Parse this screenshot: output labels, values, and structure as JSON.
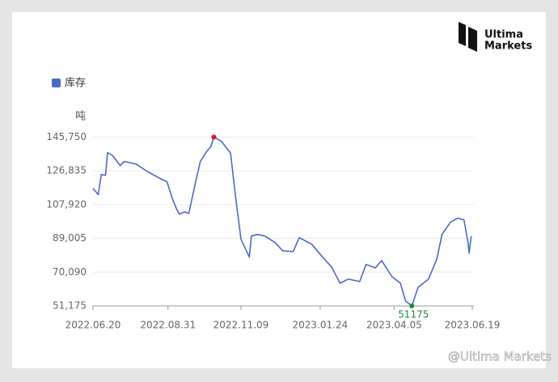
{
  "chart_data": {
    "type": "line",
    "legend_label": "库存",
    "y_unit": "吨",
    "brand": [
      "Ultima",
      "Markets"
    ],
    "watermark": "@Ultima Markets",
    "x": [
      "2022.06.20",
      "2022.06.25",
      "2022.06.28",
      "2022.07.02",
      "2022.07.04",
      "2022.07.09",
      "2022.07.16",
      "2022.07.20",
      "2022.07.31",
      "2022.08.12",
      "2022.08.22",
      "2022.08.30",
      "2022.09.04",
      "2022.09.08",
      "2022.09.11",
      "2022.09.16",
      "2022.09.20",
      "2022.09.26",
      "2022.10.01",
      "2022.10.07",
      "2022.10.11",
      "2022.10.14",
      "2022.10.21",
      "2022.10.30",
      "2022.11.04",
      "2022.11.09",
      "2022.11.17",
      "2022.11.19",
      "2022.11.25",
      "2022.12.02",
      "2022.12.12",
      "2022.12.19",
      "2022.12.29",
      "2023.01.04",
      "2023.01.16",
      "2023.01.25",
      "2023.02.04",
      "2023.02.12",
      "2023.02.20",
      "2023.03.03",
      "2023.03.09",
      "2023.03.18",
      "2023.03.24",
      "2023.04.03",
      "2023.04.11",
      "2023.04.16",
      "2023.04.22",
      "2023.04.28",
      "2023.05.08",
      "2023.05.16",
      "2023.05.21",
      "2023.05.29",
      "2023.06.05",
      "2023.06.11",
      "2023.06.15",
      "2023.06.16",
      "2023.06.18"
    ],
    "series": [
      {
        "name": "库存",
        "color": "#4a6bc0",
        "values": [
          117100,
          113500,
          124800,
          124400,
          137100,
          135300,
          129800,
          132100,
          130700,
          126200,
          123000,
          120700,
          111600,
          105700,
          102600,
          103900,
          103000,
          119400,
          132100,
          137600,
          140300,
          145750,
          143500,
          136700,
          111600,
          88500,
          78500,
          90300,
          91200,
          90300,
          86600,
          82100,
          81600,
          89400,
          85700,
          79400,
          73000,
          63900,
          66200,
          64800,
          74400,
          72500,
          76600,
          67500,
          63900,
          53900,
          51175,
          61600,
          66200,
          77500,
          91200,
          98000,
          100300,
          99400,
          86600,
          80700,
          90300
        ]
      }
    ],
    "markers": [
      {
        "x": "2022.10.14",
        "y": 145750,
        "color": "#e8121a"
      },
      {
        "x": "2023.04.22",
        "y": 51175,
        "color": "#1f8a3c",
        "label": "51175"
      }
    ],
    "xlim": [
      "2022.06.20",
      "2023.06.19"
    ],
    "xticks": [
      "2022.06.20",
      "2022.08.31",
      "2022.11.09",
      "2023.01.24",
      "2023.04.05",
      "2023.06.19"
    ],
    "ylim": [
      51175,
      150000
    ],
    "yticks": [
      {
        "value": 51175,
        "label": "51,175"
      },
      {
        "value": 70090,
        "label": "70,090"
      },
      {
        "value": 89005,
        "label": "89,005"
      },
      {
        "value": 107920,
        "label": "107,920"
      },
      {
        "value": 126835,
        "label": "126,835"
      },
      {
        "value": 145750,
        "label": "145,750"
      }
    ],
    "grid": true
  }
}
